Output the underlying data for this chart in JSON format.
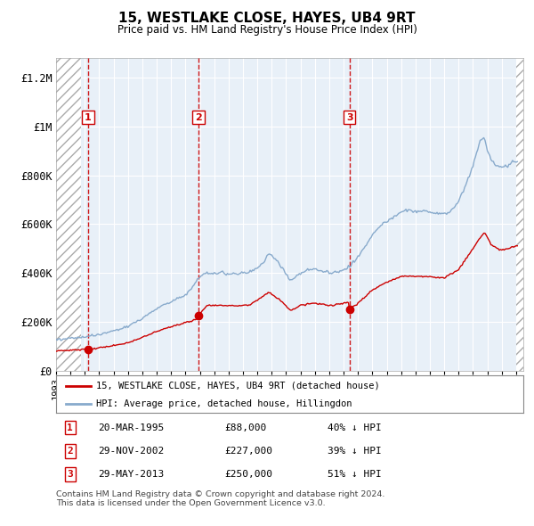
{
  "title": "15, WESTLAKE CLOSE, HAYES, UB4 9RT",
  "subtitle": "Price paid vs. HM Land Registry's House Price Index (HPI)",
  "footer": "Contains HM Land Registry data © Crown copyright and database right 2024.\nThis data is licensed under the Open Government Licence v3.0.",
  "legend_property": "15, WESTLAKE CLOSE, HAYES, UB4 9RT (detached house)",
  "legend_hpi": "HPI: Average price, detached house, Hillingdon",
  "transactions": [
    {
      "num": 1,
      "date": "20-MAR-1995",
      "price": 88000,
      "year": 1995.22,
      "hpi_pct": "40% ↓ HPI"
    },
    {
      "num": 2,
      "date": "29-NOV-2002",
      "price": 227000,
      "year": 2002.91,
      "hpi_pct": "39% ↓ HPI"
    },
    {
      "num": 3,
      "date": "29-MAY-2013",
      "price": 250000,
      "year": 2013.41,
      "hpi_pct": "51% ↓ HPI"
    }
  ],
  "xlim": [
    1993.0,
    2025.5
  ],
  "ylim": [
    0,
    1280000
  ],
  "yticks": [
    0,
    200000,
    400000,
    600000,
    800000,
    1000000,
    1200000
  ],
  "ytick_labels": [
    "£0",
    "£200K",
    "£400K",
    "£600K",
    "£800K",
    "£1M",
    "£1.2M"
  ],
  "property_color": "#cc0000",
  "hpi_color": "#88aacc",
  "plot_bg": "#e8f0f8",
  "grid_color": "#ffffff",
  "hatch_left_end": 1994.75,
  "hatch_right_start": 2025.0
}
